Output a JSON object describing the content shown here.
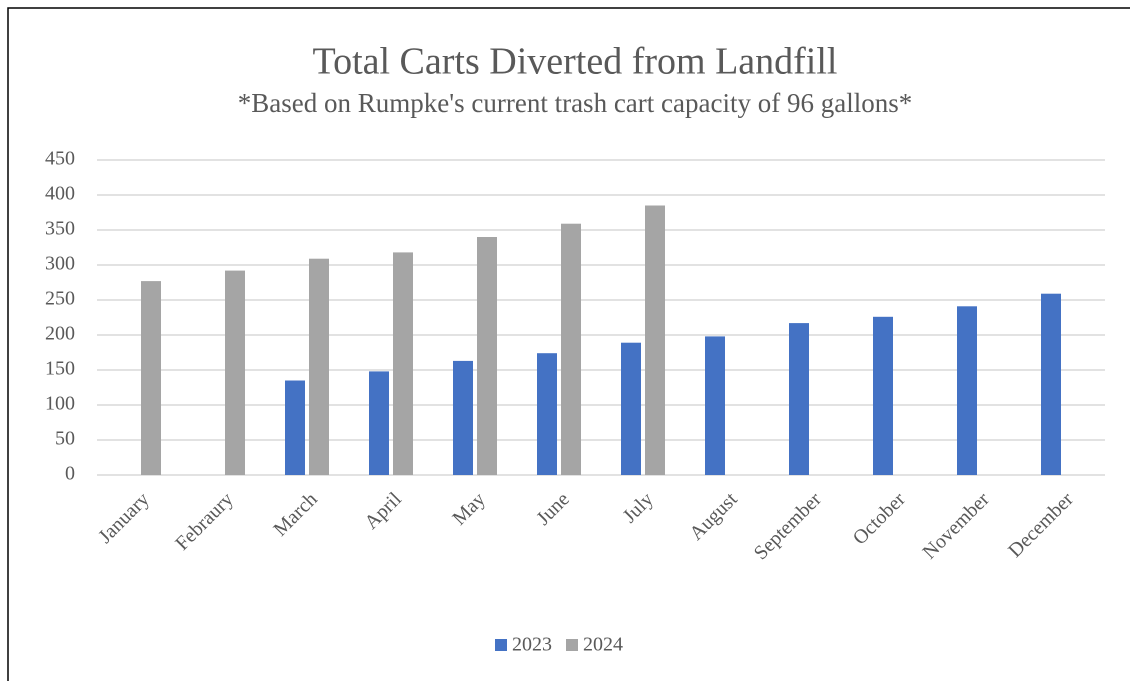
{
  "chart_data": {
    "type": "bar",
    "title": "Total Carts Diverted from Landfill",
    "subtitle": "*Based on Rumpke's current trash cart capacity of 96 gallons*",
    "categories": [
      "January",
      "Febraury",
      "March",
      "April",
      "May",
      "June",
      "July",
      "August",
      "September",
      "October",
      "November",
      "December"
    ],
    "series": [
      {
        "name": "2023",
        "color": "#4472c4",
        "values": [
          null,
          null,
          135,
          148,
          163,
          174,
          189,
          198,
          217,
          226,
          241,
          259
        ]
      },
      {
        "name": "2024",
        "color": "#a5a5a5",
        "values": [
          277,
          292,
          309,
          318,
          340,
          359,
          385,
          null,
          null,
          null,
          null,
          null
        ]
      }
    ],
    "ylim": [
      0,
      450
    ],
    "yticks": [
      0,
      50,
      100,
      150,
      200,
      250,
      300,
      350,
      400,
      450
    ],
    "grid": true,
    "legend": "bottom"
  }
}
